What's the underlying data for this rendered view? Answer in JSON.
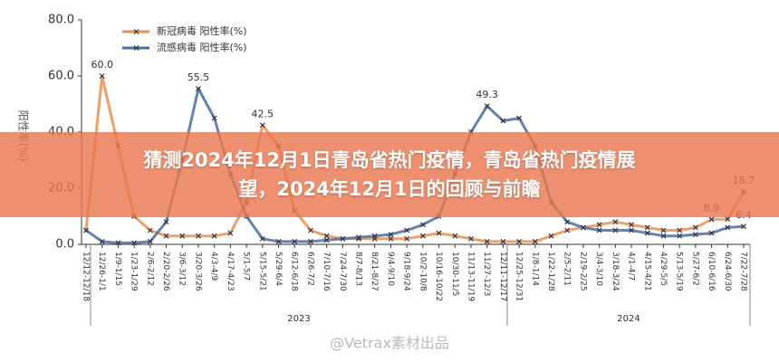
{
  "banner": {
    "lines": [
      "猜测2024年12月1日青岛省热门疫情，青岛省热门疫情展",
      "望，2024年12月1日的回顾与前瞻"
    ]
  },
  "watermark": "@Vetrax素材出品",
  "chart_data": {
    "type": "line",
    "y_label": "阳性率(%)",
    "categories": [
      "12/12-12/18",
      "12/26-1/1",
      "1/9-1/15",
      "1/23-1/29",
      "2/6-2/12",
      "2/20-2/26",
      "3/6-3/12",
      "3/20-3/26",
      "4/3-4/9",
      "4/17-4/23",
      "5/1-5/7",
      "5/15-5/21",
      "5/29-6/4",
      "6/12-6/18",
      "6/26-7/2",
      "7/10-7/16",
      "7/24-7/30",
      "8/7-8/13",
      "8/21-8/27",
      "9/4-9/10",
      "9/18-9/24",
      "10/2-10/8",
      "10/16-10/22",
      "10/30-11/5",
      "11/13-11/19",
      "11/27-12/3",
      "12/11-12/17",
      "12/25-12/31",
      "1/8-1/14",
      "1/22-1/28",
      "2/5-2/11",
      "2/19-2/25",
      "3/4-3/10",
      "3/18-3/24",
      "4/1-4/7",
      "4/15-4/21",
      "4/29-5/5",
      "5/13-5/19",
      "5/27-6/2",
      "6/10-6/16",
      "6/24-6/30",
      "7/22-7/28"
    ],
    "x_groups": [
      "2023",
      "2024"
    ],
    "series": [
      {
        "name": "新冠病毒 阳性率(%)",
        "color": "#e8914f",
        "values": [
          5,
          60,
          35,
          10,
          5,
          3,
          3,
          3,
          3,
          4,
          15,
          42.5,
          35,
          12,
          5,
          3,
          2,
          2,
          2,
          2,
          2,
          3,
          4,
          3,
          2,
          1,
          1,
          1,
          1,
          3,
          5,
          6,
          7,
          8,
          7,
          6,
          5,
          5,
          6,
          8.9,
          9,
          18.7
        ],
        "value_labels": [
          null,
          "60.0",
          null,
          null,
          null,
          null,
          null,
          null,
          null,
          null,
          null,
          "42.5",
          null,
          null,
          null,
          null,
          null,
          null,
          null,
          null,
          null,
          null,
          null,
          null,
          null,
          null,
          null,
          null,
          null,
          null,
          null,
          null,
          null,
          null,
          null,
          null,
          null,
          null,
          null,
          "8.9",
          null,
          "18.7"
        ]
      },
      {
        "name": "流感病毒 阳性率(%)",
        "color": "#4a6e9f",
        "values": [
          5,
          1,
          0.5,
          0.5,
          1,
          8,
          30,
          55.5,
          45,
          25,
          10,
          2,
          1,
          1,
          1,
          1.5,
          2,
          2.5,
          3,
          3.5,
          5,
          7,
          10,
          25,
          40,
          49.3,
          44,
          45,
          35,
          15,
          8,
          6,
          5,
          5,
          5,
          4,
          3,
          3,
          3.5,
          4,
          6,
          6.4
        ],
        "value_labels": [
          null,
          null,
          null,
          null,
          null,
          null,
          null,
          "55.5",
          null,
          null,
          null,
          null,
          null,
          null,
          null,
          null,
          null,
          null,
          null,
          null,
          null,
          null,
          null,
          null,
          null,
          "49.3",
          null,
          null,
          null,
          null,
          null,
          null,
          null,
          null,
          null,
          null,
          null,
          null,
          null,
          null,
          null,
          "6.4"
        ]
      }
    ],
    "ylim": [
      0,
      80
    ],
    "yticks": [
      {
        "value": 0,
        "label": "0.0"
      },
      {
        "value": 20,
        "label": "20.0"
      },
      {
        "value": 40,
        "label": "40.0"
      },
      {
        "value": 60,
        "label": "60.0"
      },
      {
        "value": 80,
        "label": "80.0"
      }
    ],
    "legend": "upper left"
  }
}
